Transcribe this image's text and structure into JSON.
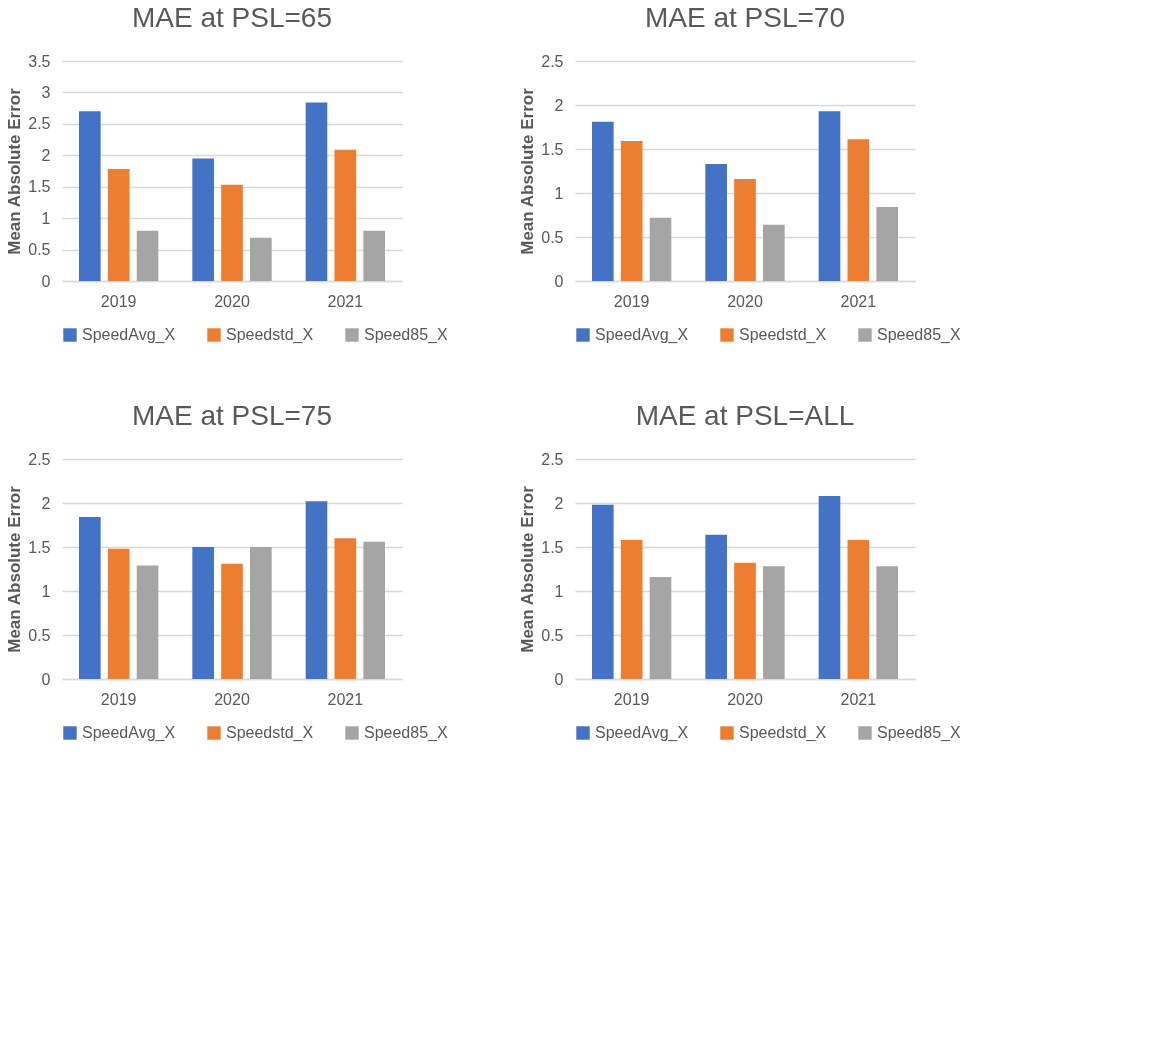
{
  "chart_data": [
    {
      "type": "bar",
      "title": "MAE at PSL=65",
      "ylabel": "Mean Absolute Error",
      "categories": [
        "2019",
        "2020",
        "2021"
      ],
      "ylim": [
        0,
        3.5
      ],
      "yticks": [
        0,
        0.5,
        1,
        1.5,
        2,
        2.5,
        3,
        3.5
      ],
      "grid": "y",
      "legend": "bottom",
      "series": [
        {
          "name": "SpeedAvg_X",
          "color": "#4472c4",
          "values": [
            2.7,
            1.95,
            2.84
          ]
        },
        {
          "name": "Speedstd_X",
          "color": "#ed7d31",
          "values": [
            1.78,
            1.53,
            2.09
          ]
        },
        {
          "name": "Speed85_X",
          "color": "#a5a5a5",
          "values": [
            0.8,
            0.69,
            0.8
          ]
        }
      ]
    },
    {
      "type": "bar",
      "title": "MAE at PSL=70",
      "ylabel": "Mean Absolute Error",
      "categories": [
        "2019",
        "2020",
        "2021"
      ],
      "ylim": [
        0,
        2.5
      ],
      "yticks": [
        0,
        0.5,
        1,
        1.5,
        2,
        2.5
      ],
      "grid": "y",
      "legend": "bottom",
      "series": [
        {
          "name": "SpeedAvg_X",
          "color": "#4472c4",
          "values": [
            1.81,
            1.33,
            1.93
          ]
        },
        {
          "name": "Speedstd_X",
          "color": "#ed7d31",
          "values": [
            1.59,
            1.16,
            1.61
          ]
        },
        {
          "name": "Speed85_X",
          "color": "#a5a5a5",
          "values": [
            0.72,
            0.64,
            0.84
          ]
        }
      ]
    },
    {
      "type": "bar",
      "title": "MAE at PSL=75",
      "ylabel": "Mean Absolute Error",
      "categories": [
        "2019",
        "2020",
        "2021"
      ],
      "ylim": [
        0,
        2.5
      ],
      "yticks": [
        0,
        0.5,
        1,
        1.5,
        2,
        2.5
      ],
      "grid": "y",
      "legend": "bottom",
      "series": [
        {
          "name": "SpeedAvg_X",
          "color": "#4472c4",
          "values": [
            1.84,
            1.5,
            2.02
          ]
        },
        {
          "name": "Speedstd_X",
          "color": "#ed7d31",
          "values": [
            1.48,
            1.31,
            1.6
          ]
        },
        {
          "name": "Speed85_X",
          "color": "#a5a5a5",
          "values": [
            1.29,
            1.5,
            1.56
          ]
        }
      ]
    },
    {
      "type": "bar",
      "title": "MAE at PSL=ALL",
      "ylabel": "Mean Absolute Error",
      "categories": [
        "2019",
        "2020",
        "2021"
      ],
      "ylim": [
        0,
        2.5
      ],
      "yticks": [
        0,
        0.5,
        1,
        1.5,
        2,
        2.5
      ],
      "grid": "y",
      "legend": "bottom",
      "series": [
        {
          "name": "SpeedAvg_X",
          "color": "#4472c4",
          "values": [
            1.98,
            1.64,
            2.08
          ]
        },
        {
          "name": "Speedstd_X",
          "color": "#ed7d31",
          "values": [
            1.58,
            1.32,
            1.58
          ]
        },
        {
          "name": "Speed85_X",
          "color": "#a5a5a5",
          "values": [
            1.16,
            1.28,
            1.28
          ]
        }
      ]
    }
  ]
}
